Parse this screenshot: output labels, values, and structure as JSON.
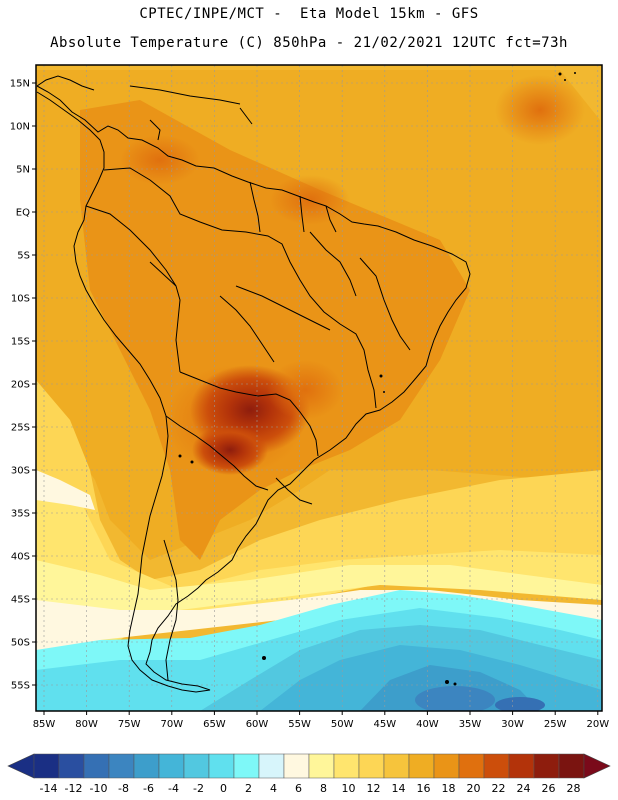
{
  "header": {
    "line1": "CPTEC/INPE/MCT -  Eta Model 15km - GFS",
    "line2": "Absolute Temperature (C) 850hPa - 21/02/2021 12UTC fct=73h"
  },
  "map": {
    "lat_labels": [
      "15N",
      "10N",
      "5N",
      "EQ",
      "5S",
      "10S",
      "15S",
      "20S",
      "25S",
      "30S",
      "35S",
      "40S",
      "45S",
      "50S",
      "55S"
    ],
    "lon_labels": [
      "85W",
      "80W",
      "75W",
      "70W",
      "65W",
      "60W",
      "55W",
      "50W",
      "45W",
      "40W",
      "35W",
      "30W",
      "25W",
      "20W"
    ]
  },
  "colorbar": {
    "labels": [
      "-14",
      "-12",
      "-10",
      "-8",
      "-6",
      "-4",
      "-2",
      "0",
      "2",
      "4",
      "6",
      "8",
      "10",
      "12",
      "14",
      "16",
      "18",
      "20",
      "22",
      "24",
      "26",
      "28"
    ],
    "colors": [
      "#1a2f84",
      "#2a4fa0",
      "#3570b4",
      "#3c85c0",
      "#3d9ecb",
      "#44b5d8",
      "#52c8e0",
      "#60e0ee",
      "#7ef8f8",
      "#d7f5fb",
      "#fff8e0",
      "#fff69a",
      "#ffe56e",
      "#fdd655",
      "#f6c43c",
      "#efad23",
      "#ea9417",
      "#e0700e",
      "#cc4e0b",
      "#b3330a",
      "#8e1d0d",
      "#7a1410"
    ]
  },
  "colors": {
    "land_border": "#000000",
    "grid": "#9a9a9a"
  }
}
